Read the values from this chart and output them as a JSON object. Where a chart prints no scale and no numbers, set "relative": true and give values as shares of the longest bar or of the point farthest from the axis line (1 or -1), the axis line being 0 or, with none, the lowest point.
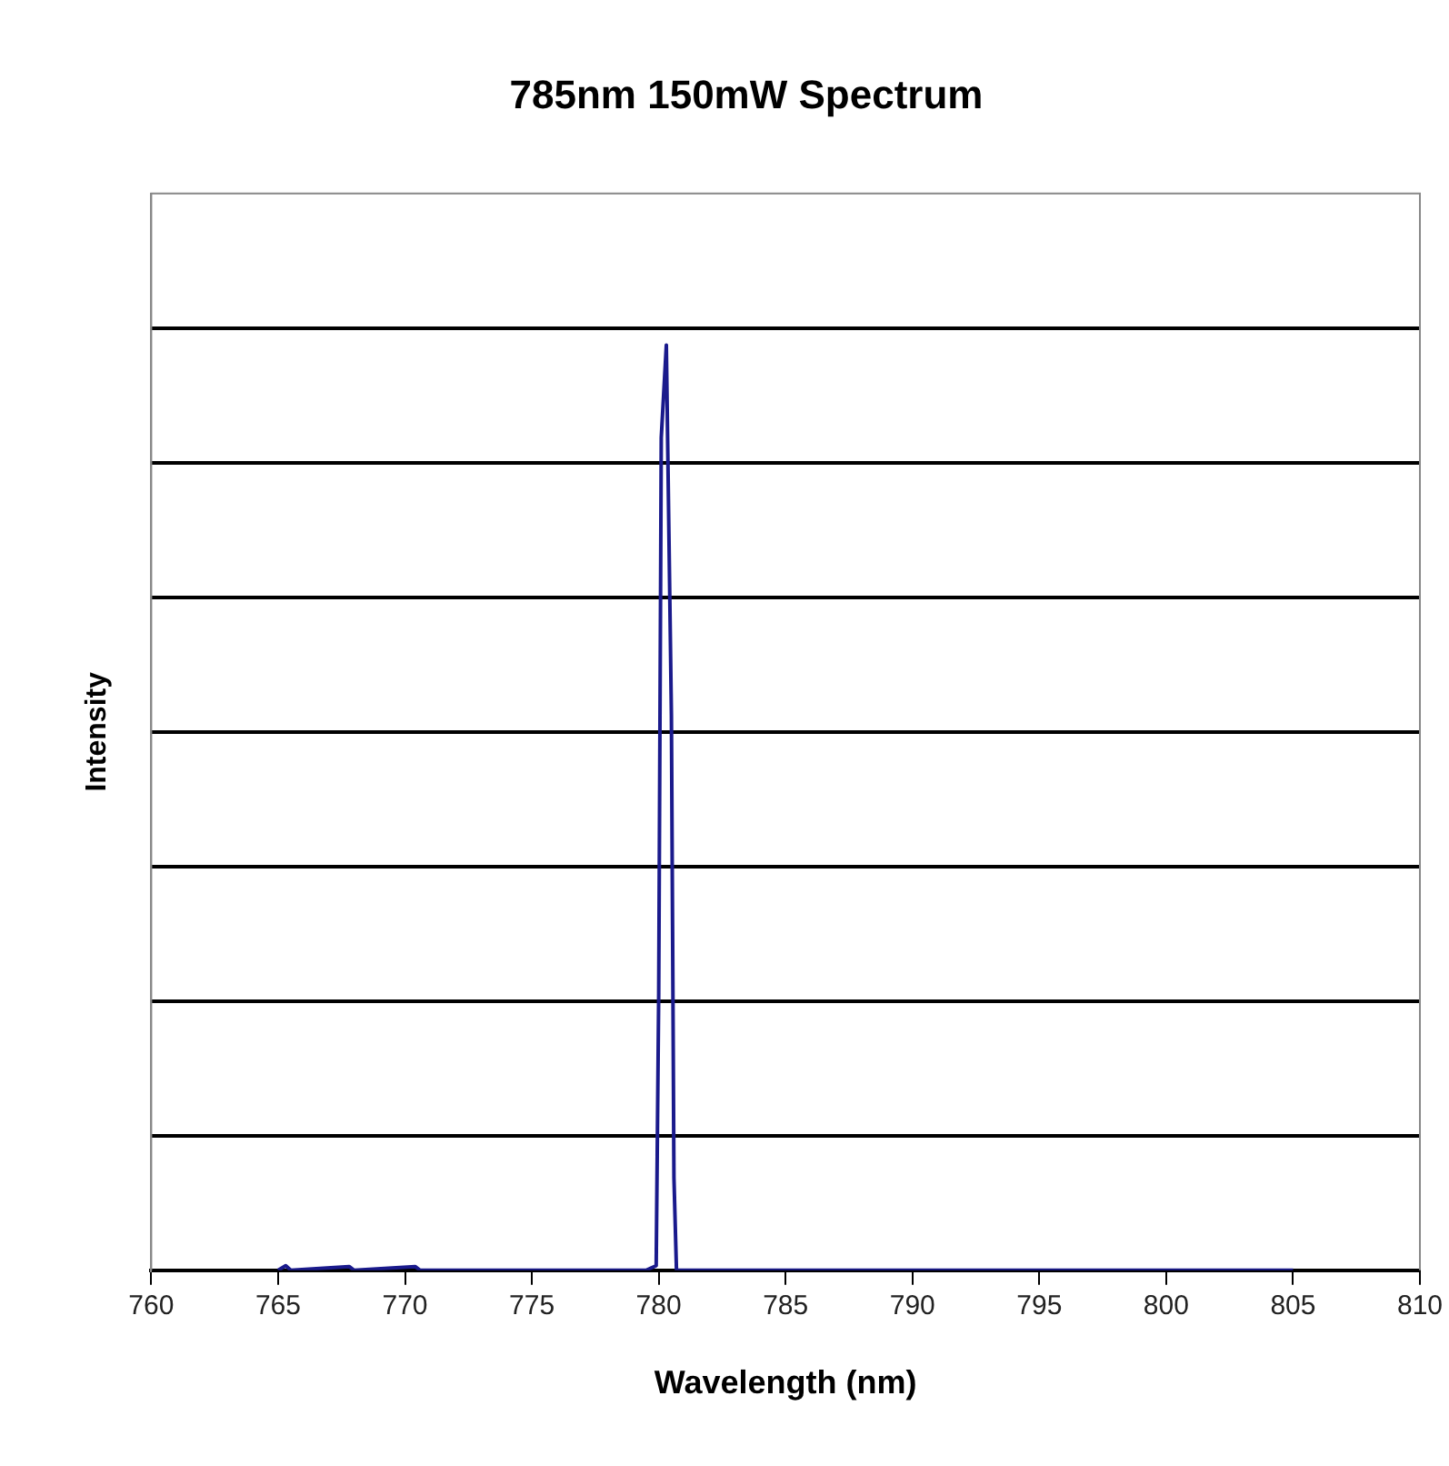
{
  "chart_data": {
    "type": "line",
    "title": "785nm 150mW Spectrum",
    "xlabel": "Wavelength (nm)",
    "ylabel": "Intensity",
    "relative": true,
    "series": [
      {
        "color": "#1a1a8c",
        "x": [
          765,
          765.3,
          765.5,
          767.8,
          768,
          770.4,
          770.6,
          779.5,
          779.9,
          780.0,
          780.1,
          780.3,
          780.5,
          780.6,
          780.7,
          805
        ],
        "values": [
          0,
          0.005,
          0,
          0.004,
          0,
          0.004,
          0,
          0,
          0.005,
          0.3,
          0.9,
          1,
          0.6,
          0.1,
          0,
          0
        ]
      }
    ],
    "xlim": [
      760,
      810
    ],
    "xticks": [
      760,
      765,
      770,
      775,
      780,
      785,
      790,
      795,
      800,
      805,
      810
    ],
    "grid": "y",
    "legend": false,
    "marker": "none",
    "line_style": "solid"
  }
}
